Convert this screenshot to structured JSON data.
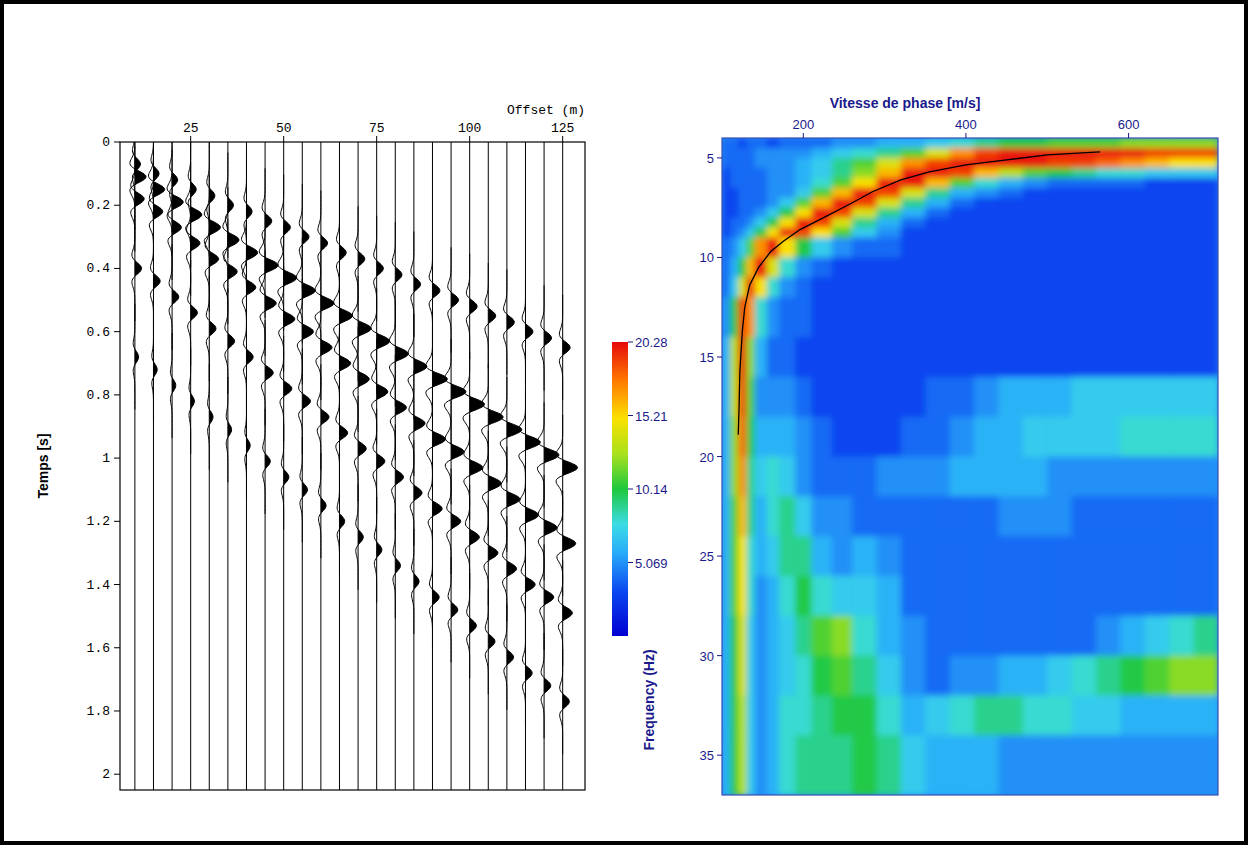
{
  "chart_data": [
    {
      "type": "wiggle",
      "x_label": "Offset (m)",
      "y_label": "Temps [s]",
      "xlim": [
        6,
        131
      ],
      "ylim": [
        0,
        2.05
      ],
      "xticks": [
        25,
        50,
        75,
        100,
        125
      ],
      "yticks": [
        0,
        0.2,
        0.4,
        0.6,
        0.8,
        1,
        1.2,
        1.4,
        1.6,
        1.8,
        2
      ],
      "traces": [
        {
          "offset": 10,
          "times": [
            0.07,
            0.11,
            0.18,
            0.4,
            0.68
          ],
          "amplitudes": [
            1.5,
            3,
            2.5,
            1.8,
            1
          ]
        },
        {
          "offset": 15,
          "times": [
            0.1,
            0.15,
            0.22,
            0.44,
            0.72
          ],
          "amplitudes": [
            1.5,
            3,
            2.5,
            1.8,
            1
          ]
        },
        {
          "offset": 20,
          "times": [
            0.12,
            0.19,
            0.27,
            0.49,
            0.77
          ],
          "amplitudes": [
            1.5,
            3,
            2.5,
            1.8,
            1
          ]
        },
        {
          "offset": 25,
          "times": [
            0.15,
            0.23,
            0.32,
            0.54,
            0.82
          ],
          "amplitudes": [
            1.5,
            3,
            2.5,
            1.8,
            1
          ]
        },
        {
          "offset": 30,
          "times": [
            0.17,
            0.27,
            0.37,
            0.59,
            0.87
          ],
          "amplitudes": [
            1.5,
            3,
            2.5,
            1.8,
            1
          ]
        },
        {
          "offset": 35,
          "times": [
            0.2,
            0.31,
            0.41,
            0.63,
            0.91
          ],
          "amplitudes": [
            1.5,
            3,
            2.5,
            1.8,
            1
          ]
        },
        {
          "offset": 40,
          "times": [
            0.22,
            0.35,
            0.46,
            0.68,
            0.96
          ],
          "amplitudes": [
            1.5,
            3,
            2.5,
            1.8,
            1
          ]
        },
        {
          "offset": 45,
          "times": [
            0.25,
            0.39,
            0.51,
            0.73,
            1.01
          ],
          "amplitudes": [
            1.8,
            3.5,
            3,
            2.2,
            1.4
          ]
        },
        {
          "offset": 50,
          "times": [
            0.27,
            0.43,
            0.56,
            0.78,
            1.06
          ],
          "amplitudes": [
            1.8,
            3.5,
            3,
            2.2,
            1.4
          ]
        },
        {
          "offset": 55,
          "times": [
            0.3,
            0.47,
            0.6,
            0.82,
            1.1
          ],
          "amplitudes": [
            1.8,
            3.5,
            3,
            2.2,
            1.4
          ]
        },
        {
          "offset": 60,
          "times": [
            0.32,
            0.51,
            0.65,
            0.87,
            1.15
          ],
          "amplitudes": [
            1.8,
            3.5,
            3,
            2.2,
            1.4
          ]
        },
        {
          "offset": 65,
          "times": [
            0.35,
            0.55,
            0.7,
            0.92,
            1.2
          ],
          "amplitudes": [
            1.8,
            3.5,
            3,
            2.2,
            1.4
          ]
        },
        {
          "offset": 70,
          "times": [
            0.37,
            0.59,
            0.75,
            0.97,
            1.25
          ],
          "amplitudes": [
            1.8,
            3.5,
            3,
            2.2,
            1.4
          ]
        },
        {
          "offset": 75,
          "times": [
            0.4,
            0.63,
            0.79,
            1.01,
            1.29
          ],
          "amplitudes": [
            1.8,
            3.5,
            3,
            2.2,
            1.4
          ]
        },
        {
          "offset": 80,
          "times": [
            0.42,
            0.67,
            0.84,
            1.06,
            1.34
          ],
          "amplitudes": [
            1.8,
            3.5,
            3,
            2.2,
            1.4
          ]
        },
        {
          "offset": 85,
          "times": [
            0.45,
            0.71,
            0.89,
            1.11,
            1.39
          ],
          "amplitudes": [
            1.8,
            3.5,
            3,
            2.2,
            1.4
          ]
        },
        {
          "offset": 90,
          "times": [
            0.47,
            0.75,
            0.94,
            1.16,
            1.44
          ],
          "amplitudes": [
            2,
            4,
            3.5,
            2.6,
            1.8
          ]
        },
        {
          "offset": 95,
          "times": [
            0.5,
            0.79,
            0.98,
            1.2,
            1.48
          ],
          "amplitudes": [
            2,
            4,
            3.5,
            2.6,
            1.8
          ]
        },
        {
          "offset": 100,
          "times": [
            0.52,
            0.83,
            1.03,
            1.25,
            1.53
          ],
          "amplitudes": [
            2,
            4,
            3.5,
            2.6,
            1.8
          ]
        },
        {
          "offset": 105,
          "times": [
            0.55,
            0.87,
            1.08,
            1.3,
            1.58
          ],
          "amplitudes": [
            2,
            4,
            3.5,
            2.6,
            1.8
          ]
        },
        {
          "offset": 110,
          "times": [
            0.57,
            0.91,
            1.13,
            1.35,
            1.63
          ],
          "amplitudes": [
            2,
            4,
            3.5,
            2.6,
            1.8
          ]
        },
        {
          "offset": 115,
          "times": [
            0.6,
            0.95,
            1.18,
            1.4,
            1.68
          ],
          "amplitudes": [
            2,
            4,
            3.5,
            2.6,
            1.8
          ]
        },
        {
          "offset": 120,
          "times": [
            0.62,
            0.99,
            1.22,
            1.44,
            1.72
          ],
          "amplitudes": [
            2,
            4,
            3.5,
            2.6,
            1.8
          ]
        },
        {
          "offset": 125,
          "times": [
            0.65,
            1.03,
            1.27,
            1.49,
            1.77
          ],
          "amplitudes": [
            2,
            4,
            3.5,
            2.6,
            1.8
          ]
        }
      ]
    },
    {
      "type": "heatmap",
      "x_label": "Vitesse de phase [m/s]",
      "y_label": "Frequency (Hz)",
      "xlim": [
        100,
        710
      ],
      "ylim": [
        4,
        37
      ],
      "xticks": [
        200,
        400,
        600
      ],
      "yticks": [
        5,
        10,
        15,
        20,
        25,
        30,
        35
      ],
      "x_edges": [
        100,
        110,
        120,
        130,
        140,
        155,
        170,
        190,
        210,
        235,
        260,
        290,
        320,
        350,
        380,
        410,
        440,
        470,
        500,
        530,
        560,
        590,
        620,
        650,
        680,
        710
      ],
      "y_edges": [
        4,
        4.5,
        5,
        5.5,
        6,
        6.5,
        7,
        7.5,
        8,
        8.5,
        9,
        10,
        11,
        12,
        14,
        16,
        18,
        20,
        22,
        24,
        26,
        28,
        30,
        32,
        34,
        37
      ],
      "cells": [
        [
          4,
          4,
          3,
          4,
          4,
          3,
          4,
          4,
          4,
          5,
          5,
          6,
          6,
          7,
          8,
          9,
          10,
          10,
          11,
          11,
          11,
          12,
          12,
          12,
          12
        ],
        [
          4,
          4,
          4,
          4,
          5,
          5,
          5,
          5,
          6,
          7,
          8,
          9,
          11,
          14,
          17,
          19,
          20,
          20,
          20,
          20,
          20,
          20,
          19,
          19,
          19
        ],
        [
          4,
          4,
          4,
          4,
          5,
          5,
          5,
          6,
          7,
          9,
          11,
          14,
          17,
          19,
          20,
          20,
          20,
          20,
          19,
          19,
          18,
          17,
          16,
          15,
          15
        ],
        [
          3,
          4,
          4,
          4,
          4,
          5,
          5,
          6,
          7,
          9,
          12,
          16,
          20,
          20,
          19,
          16,
          13,
          11,
          10,
          9,
          8,
          8,
          7,
          7,
          7
        ],
        [
          3,
          4,
          4,
          4,
          4,
          5,
          5,
          6,
          8,
          11,
          15,
          20,
          20,
          16,
          11,
          8,
          6,
          5,
          4,
          4,
          4,
          4,
          3,
          3,
          3
        ],
        [
          3,
          3,
          4,
          4,
          4,
          5,
          5,
          7,
          11,
          16,
          20,
          19,
          14,
          9,
          6,
          5,
          4,
          3,
          3,
          3,
          3,
          3,
          3,
          3,
          3
        ],
        [
          3,
          3,
          4,
          4,
          4,
          5,
          7,
          11,
          16,
          20,
          19,
          14,
          9,
          6,
          4,
          3,
          3,
          3,
          3,
          3,
          3,
          3,
          3,
          3,
          3
        ],
        [
          3,
          3,
          4,
          4,
          5,
          7,
          10,
          15,
          20,
          19,
          14,
          9,
          6,
          4,
          3,
          3,
          3,
          3,
          3,
          3,
          3,
          3,
          3,
          3,
          3
        ],
        [
          3,
          4,
          4,
          5,
          7,
          10,
          15,
          20,
          19,
          14,
          9,
          6,
          4,
          3,
          3,
          3,
          3,
          3,
          3,
          3,
          3,
          3,
          3,
          3,
          3
        ],
        [
          3,
          4,
          5,
          7,
          10,
          15,
          20,
          19,
          15,
          11,
          7,
          5,
          3,
          3,
          3,
          3,
          3,
          3,
          3,
          3,
          3,
          3,
          3,
          3,
          3
        ],
        [
          4,
          5,
          7,
          11,
          17,
          20,
          15,
          10,
          7,
          5,
          4,
          4,
          3,
          3,
          3,
          3,
          3,
          3,
          3,
          3,
          3,
          3,
          3,
          3,
          3
        ],
        [
          4,
          6,
          10,
          16,
          20,
          14,
          8,
          5,
          4,
          3,
          3,
          3,
          3,
          3,
          3,
          3,
          3,
          3,
          3,
          3,
          3,
          3,
          3,
          3,
          3
        ],
        [
          4,
          7,
          14,
          20,
          15,
          8,
          5,
          4,
          3,
          3,
          3,
          3,
          3,
          3,
          3,
          3,
          3,
          3,
          3,
          3,
          3,
          3,
          3,
          3,
          3
        ],
        [
          5,
          10,
          19,
          17,
          8,
          5,
          4,
          4,
          3,
          3,
          3,
          3,
          3,
          3,
          3,
          3,
          3,
          3,
          3,
          3,
          3,
          3,
          3,
          3,
          3
        ],
        [
          6,
          13,
          20,
          12,
          6,
          4,
          4,
          3,
          3,
          3,
          3,
          3,
          3,
          3,
          3,
          3,
          3,
          3,
          3,
          3,
          3,
          3,
          3,
          3,
          3
        ],
        [
          6,
          13,
          19,
          11,
          5,
          5,
          5,
          4,
          3,
          3,
          3,
          3,
          3,
          4,
          4,
          5,
          6,
          6,
          6,
          7,
          7,
          7,
          7,
          7,
          7
        ],
        [
          6,
          12,
          18,
          10,
          6,
          6,
          6,
          5,
          4,
          3,
          3,
          3,
          4,
          4,
          5,
          6,
          6,
          7,
          7,
          7,
          7,
          8,
          8,
          8,
          8
        ],
        [
          6,
          12,
          17,
          9,
          7,
          8,
          7,
          5,
          4,
          4,
          4,
          5,
          5,
          5,
          6,
          6,
          6,
          6,
          5,
          5,
          5,
          5,
          5,
          5,
          5
        ],
        [
          6,
          11,
          16,
          9,
          6,
          8,
          9,
          7,
          5,
          5,
          4,
          4,
          4,
          4,
          4,
          4,
          5,
          5,
          5,
          4,
          4,
          4,
          4,
          4,
          4
        ],
        [
          6,
          11,
          15,
          8,
          6,
          7,
          9,
          9,
          6,
          5,
          6,
          5,
          4,
          4,
          4,
          4,
          4,
          4,
          4,
          4,
          4,
          4,
          4,
          4,
          4
        ],
        [
          6,
          11,
          15,
          8,
          5,
          6,
          8,
          10,
          8,
          7,
          7,
          6,
          4,
          4,
          4,
          4,
          4,
          4,
          4,
          4,
          4,
          4,
          4,
          4,
          4
        ],
        [
          6,
          10,
          14,
          7,
          5,
          6,
          7,
          9,
          11,
          12,
          8,
          6,
          5,
          4,
          4,
          4,
          4,
          4,
          4,
          4,
          5,
          6,
          7,
          8,
          9
        ],
        [
          6,
          10,
          14,
          7,
          5,
          6,
          7,
          8,
          10,
          11,
          9,
          7,
          5,
          4,
          5,
          5,
          6,
          6,
          7,
          8,
          9,
          10,
          11,
          12,
          12
        ],
        [
          6,
          10,
          13,
          7,
          5,
          6,
          8,
          8,
          9,
          10,
          10,
          8,
          6,
          7,
          8,
          9,
          9,
          8,
          8,
          7,
          7,
          6,
          6,
          6,
          6
        ],
        [
          6,
          10,
          13,
          7,
          5,
          6,
          8,
          9,
          9,
          9,
          10,
          9,
          7,
          6,
          6,
          6,
          5,
          5,
          5,
          5,
          5,
          5,
          5,
          5,
          5
        ]
      ],
      "colorbar": {
        "lim": [
          0,
          20.28
        ],
        "ticks": [
          5.069,
          10.14,
          15.21,
          20.28
        ]
      },
      "series": [
        {
          "type": "line",
          "color": "#000000",
          "x": [
            565,
            500,
            450,
            400,
            355,
            320,
            285,
            258,
            225,
            196,
            175,
            160,
            145,
            134,
            128,
            125,
            122,
            121,
            120
          ],
          "values": [
            4.7,
            4.85,
            5.1,
            5.35,
            5.7,
            6.1,
            6.7,
            7.3,
            8.0,
            8.6,
            9.2,
            9.7,
            10.5,
            11.4,
            12.5,
            13.7,
            15.7,
            17.5,
            18.9
          ]
        }
      ]
    }
  ]
}
